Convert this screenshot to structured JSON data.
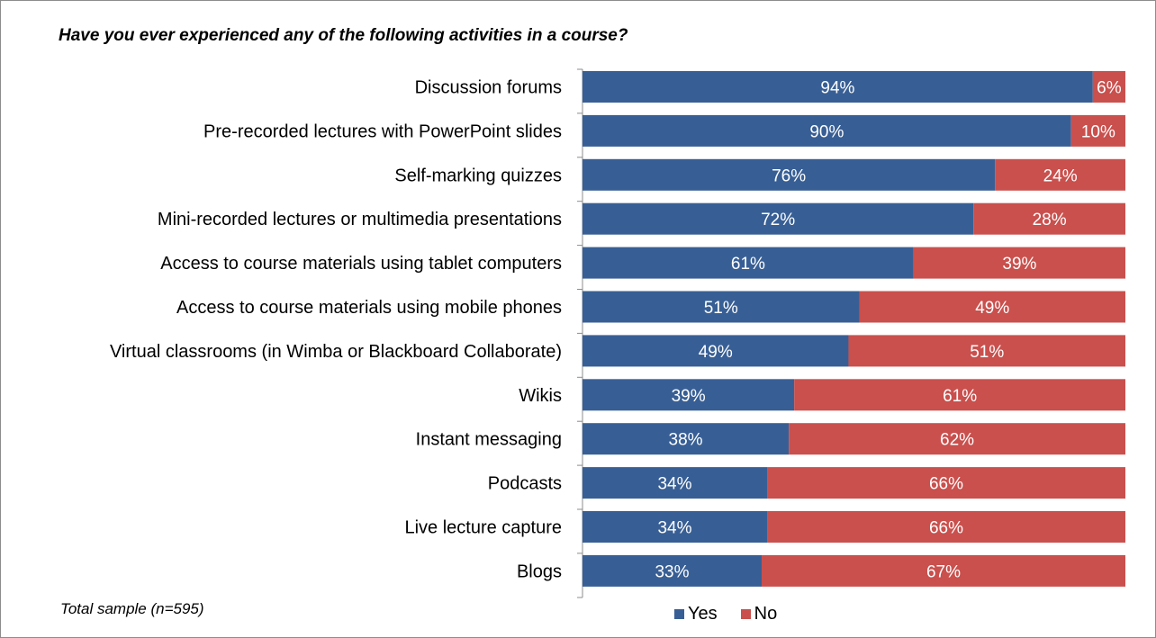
{
  "title": "Have you ever experienced any of the following activities in a course?",
  "note": "Total sample (n=595)",
  "colors": {
    "yes": "#385f95",
    "no": "#c9504d",
    "axis": "#8c8c8c"
  },
  "legend": [
    {
      "label": "Yes",
      "color": "#385f95"
    },
    {
      "label": "No",
      "color": "#c9504d"
    }
  ],
  "chart_data": {
    "type": "bar",
    "orientation": "horizontal",
    "stacked": true,
    "percent": true,
    "title": "Have you ever experienced any of the following activities in a course?",
    "categories": [
      "Discussion forums",
      "Pre-recorded lectures with PowerPoint slides",
      "Self-marking quizzes",
      "Mini-recorded lectures or multimedia presentations",
      "Access to course materials using tablet computers",
      "Access to course materials using mobile phones",
      "Virtual classrooms (in Wimba or Blackboard Collaborate)",
      "Wikis",
      "Instant messaging",
      "Podcasts",
      "Live lecture capture",
      "Blogs"
    ],
    "series": [
      {
        "name": "Yes",
        "values": [
          94,
          90,
          76,
          72,
          61,
          51,
          49,
          39,
          38,
          34,
          34,
          33
        ]
      },
      {
        "name": "No",
        "values": [
          6,
          10,
          24,
          28,
          39,
          49,
          51,
          61,
          62,
          66,
          66,
          67
        ]
      }
    ],
    "xlim": [
      0,
      100
    ],
    "grid": false,
    "legend_position": "bottom"
  }
}
